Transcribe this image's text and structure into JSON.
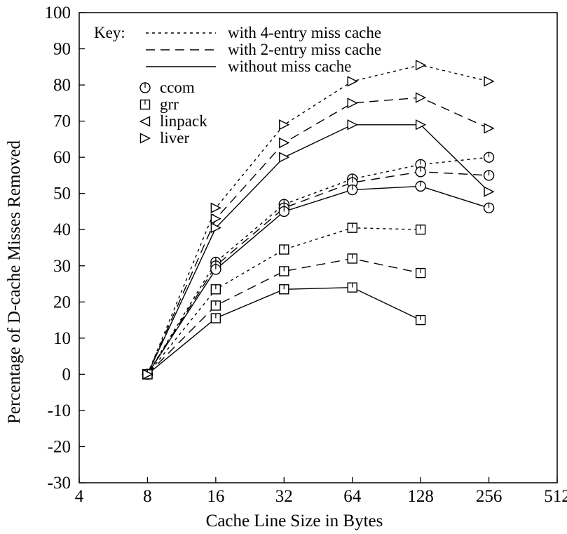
{
  "chart_data": {
    "type": "line",
    "x_axis": {
      "label": "Cache Line Size in Bytes",
      "scale": "log2",
      "range": [
        4,
        512
      ],
      "ticks": [
        "4",
        "8",
        "16",
        "32",
        "64",
        "128",
        "256",
        "512"
      ]
    },
    "y_axis": {
      "label": "Percentage of D-cache Misses Removed",
      "range": [
        -30,
        100
      ],
      "ticks": [
        "-30",
        "-20",
        "-10",
        "0",
        "10",
        "20",
        "30",
        "40",
        "50",
        "60",
        "70",
        "80",
        "90",
        "100"
      ]
    },
    "grid": false,
    "legend": {
      "placement": "top-left",
      "title": "Key:",
      "line_styles": [
        {
          "style": "dotted",
          "label": "with 4-entry miss cache"
        },
        {
          "style": "dashed",
          "label": "with 2-entry miss cache"
        },
        {
          "style": "solid",
          "label": "without miss cache"
        }
      ],
      "markers": [
        {
          "marker": "circle",
          "label": "ccom"
        },
        {
          "marker": "square",
          "label": "grr"
        },
        {
          "marker": "triangle-left",
          "label": "linpack"
        },
        {
          "marker": "triangle-right",
          "label": "liver"
        }
      ]
    },
    "series": [
      {
        "benchmark": "ccom",
        "marker": "circle",
        "style": "dotted",
        "x": [
          8,
          16,
          32,
          64,
          128,
          256
        ],
        "y": [
          0,
          31,
          47,
          54,
          58,
          60
        ]
      },
      {
        "benchmark": "ccom",
        "marker": "circle",
        "style": "dashed",
        "x": [
          8,
          16,
          32,
          64,
          128,
          256
        ],
        "y": [
          0,
          30,
          46,
          53,
          56,
          55
        ]
      },
      {
        "benchmark": "ccom",
        "marker": "circle",
        "style": "solid",
        "x": [
          8,
          16,
          32,
          64,
          128,
          256
        ],
        "y": [
          0,
          29,
          45,
          51,
          52,
          46
        ]
      },
      {
        "benchmark": "grr",
        "marker": "square",
        "style": "dotted",
        "x": [
          8,
          16,
          32,
          64,
          128
        ],
        "y": [
          0,
          23.5,
          34.5,
          40.5,
          40
        ]
      },
      {
        "benchmark": "grr",
        "marker": "square",
        "style": "dashed",
        "x": [
          8,
          16,
          32,
          64,
          128
        ],
        "y": [
          0,
          19,
          28.5,
          32,
          28
        ]
      },
      {
        "benchmark": "grr",
        "marker": "square",
        "style": "solid",
        "x": [
          8,
          16,
          32,
          64,
          128
        ],
        "y": [
          0,
          15.5,
          23.5,
          24,
          15
        ]
      },
      {
        "benchmark": "liver",
        "marker": "triangle-right",
        "style": "dotted",
        "x": [
          8,
          16,
          32,
          64,
          128,
          256
        ],
        "y": [
          0,
          46,
          69,
          81,
          85.5,
          81
        ]
      },
      {
        "benchmark": "liver",
        "marker": "triangle-right",
        "style": "dashed",
        "x": [
          8,
          16,
          32,
          64,
          128,
          256
        ],
        "y": [
          0,
          43,
          64,
          75,
          76.5,
          68
        ]
      },
      {
        "benchmark": "liver",
        "marker": "triangle-right",
        "style": "solid",
        "x": [
          8,
          16,
          32,
          64,
          128,
          256
        ],
        "y": [
          0,
          40.5,
          60,
          69,
          69,
          50.5
        ]
      }
    ]
  }
}
